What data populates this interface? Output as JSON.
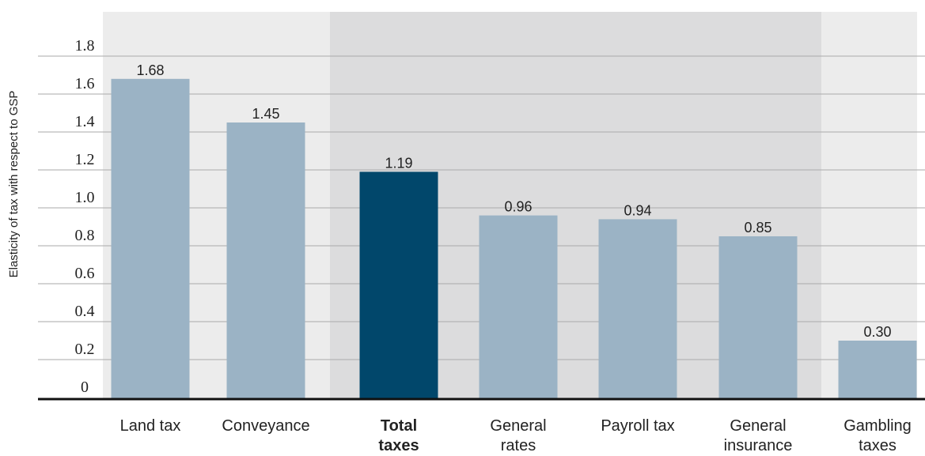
{
  "chart_data": {
    "type": "bar",
    "ylabel": "Elasticity of tax with respect to GSP",
    "xlabel": "",
    "ylim": [
      0,
      1.9
    ],
    "yticks": [
      "0",
      "0.2",
      "0.4",
      "0.6",
      "0.8",
      "1.0",
      "1.2",
      "1.4",
      "1.6",
      "1.8"
    ],
    "grid": true,
    "categories": [
      [
        "Land tax"
      ],
      [
        "Conveyance"
      ],
      [
        "Total",
        "taxes"
      ],
      [
        "General",
        "rates"
      ],
      [
        "Payroll tax"
      ],
      [
        "General",
        "insurance"
      ],
      [
        "Gambling",
        "taxes"
      ]
    ],
    "values": [
      1.68,
      1.45,
      1.19,
      0.96,
      0.94,
      0.85,
      0.3
    ],
    "labels": [
      "1.68",
      "1.45",
      "1.19",
      "0.96",
      "0.94",
      "0.85",
      "0.30"
    ],
    "highlight_index": 2,
    "colors": {
      "bar": "#9bb3c5",
      "highlight": "#01476b",
      "band_light": "#ececec",
      "band_dark": "#dcdcdd",
      "grid": "#aaaaaa",
      "axis": "#111111"
    },
    "bands": [
      "light",
      "light",
      "dark",
      "dark",
      "dark",
      "dark",
      "light"
    ]
  }
}
